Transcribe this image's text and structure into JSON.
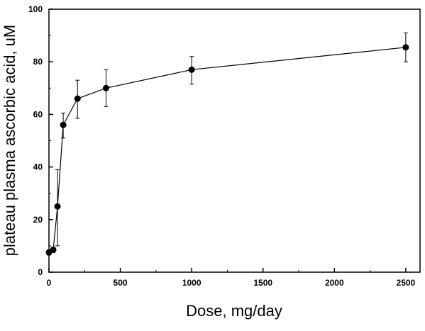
{
  "chart_data": {
    "type": "line",
    "title": "",
    "xlabel": "Dose, mg/day",
    "ylabel": "plateau plasma ascorbic acid, uM",
    "xlim": [
      0,
      2600
    ],
    "ylim": [
      0,
      100
    ],
    "x_ticks": [
      0,
      500,
      1000,
      1500,
      2000,
      2500
    ],
    "y_ticks": [
      0,
      20,
      40,
      60,
      80,
      100
    ],
    "grid": false,
    "legend": "none",
    "series": [
      {
        "x": [
          0,
          30,
          60,
          100,
          200,
          400,
          1000,
          2500
        ],
        "y": [
          7.5,
          8.5,
          25,
          56,
          66,
          70,
          77,
          85.5
        ],
        "err_low": [
          6.5,
          7.5,
          10,
          51,
          58.5,
          63,
          71.5,
          80
        ],
        "err_high": [
          8.5,
          9.5,
          39,
          60.5,
          73,
          77,
          82,
          91
        ],
        "color": "#000000",
        "marker": "circle"
      }
    ]
  }
}
